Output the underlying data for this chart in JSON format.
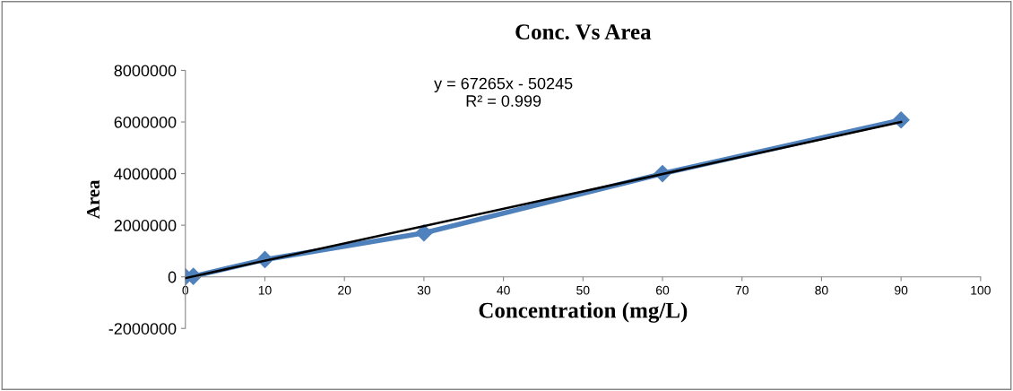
{
  "chart_data": {
    "type": "line",
    "title": "Conc. Vs Area",
    "xlabel": "Concentration (mg/L)",
    "ylabel": "Area",
    "series": [
      {
        "color": "#4f81bd",
        "x": [
          0,
          1,
          10,
          30,
          60,
          90
        ],
        "values": [
          0,
          20000,
          670000,
          1700000,
          4000000,
          6080000
        ],
        "marker": "diamond"
      },
      {
        "type": "line",
        "color": "#000000",
        "x": [
          0,
          90
        ],
        "values": [
          -50000,
          6000000
        ],
        "marker": "none"
      }
    ],
    "annotations": [
      "y = 67265x - 50245\nR² = 0.999"
    ],
    "xlim": [
      0,
      100
    ],
    "xticks": [
      0,
      10,
      20,
      30,
      40,
      50,
      60,
      70,
      80,
      90,
      100
    ],
    "ylim": [
      -2000000,
      8000000
    ],
    "yticks": [
      -2000000,
      0,
      2000000,
      4000000,
      6000000,
      8000000
    ],
    "grid": false,
    "legend": false
  }
}
